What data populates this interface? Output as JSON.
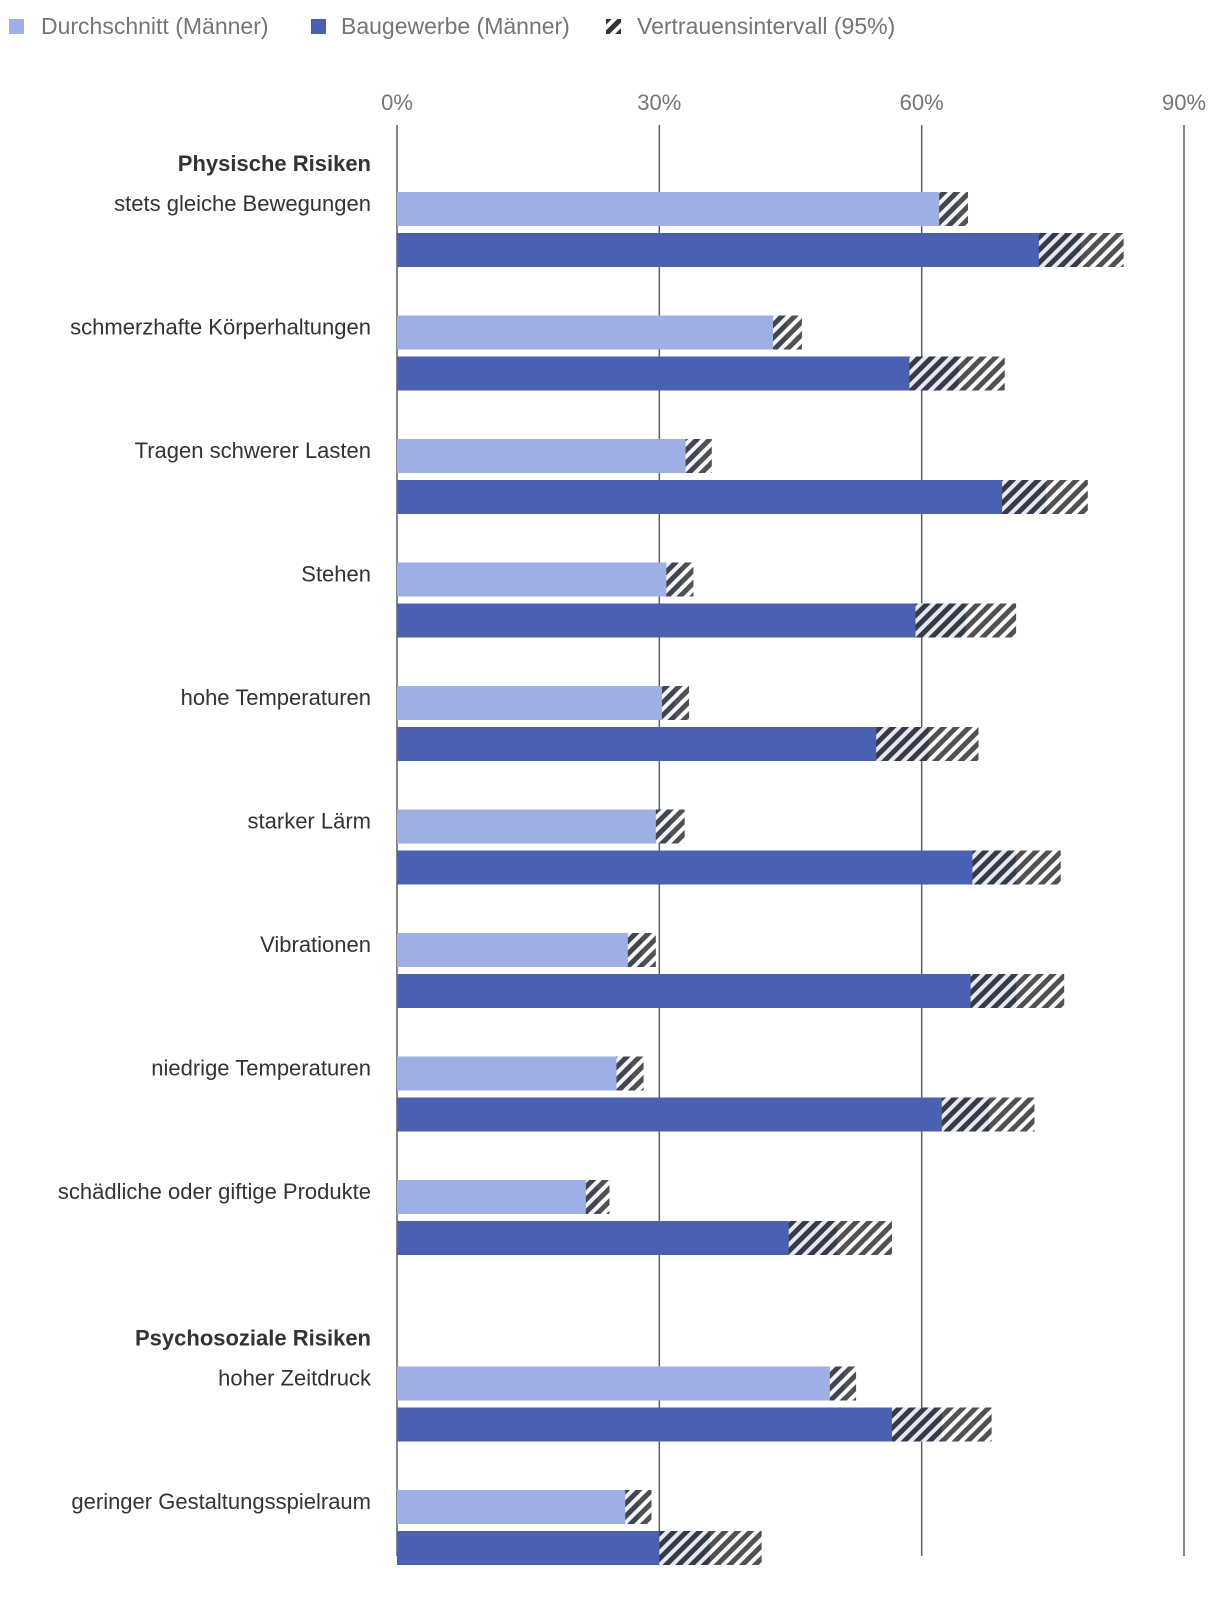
{
  "chart_data": {
    "type": "bar",
    "orientation": "horizontal",
    "xlim": [
      0,
      90
    ],
    "x_ticks": [
      {
        "value": 0,
        "label": "0%"
      },
      {
        "value": 30,
        "label": "30%"
      },
      {
        "value": 60,
        "label": "60%"
      },
      {
        "value": 90,
        "label": "90%"
      }
    ],
    "colors": {
      "durchschnitt": "#9dafe5",
      "baugewerbe": "#4a61b3",
      "ci": "#333333",
      "grid": "#5f5f5f"
    },
    "legend": [
      {
        "key": "durchschnitt",
        "label": "Durchschnitt (Männer)"
      },
      {
        "key": "baugewerbe",
        "label": "Baugewerbe (Männer)"
      },
      {
        "key": "ci",
        "label": "Vertrauensintervall (95%)"
      }
    ],
    "groups": [
      {
        "label": "Physische Risiken",
        "items": [
          {
            "label": "stets gleiche Bewegungen",
            "durchschnitt": {
              "value": 64,
              "ci": [
                62,
                65.3
              ]
            },
            "baugewerbe": {
              "value": 78.2,
              "ci": [
                73.4,
                83.1
              ]
            }
          },
          {
            "label": "schmerzhafte Körperhaltungen",
            "durchschnitt": {
              "value": 44.5,
              "ci": [
                43,
                46.3
              ]
            },
            "baugewerbe": {
              "value": 64.2,
              "ci": [
                58.6,
                69.5
              ]
            }
          },
          {
            "label": "Tragen schwerer Lasten",
            "durchschnitt": {
              "value": 34.5,
              "ci": [
                33,
                36
              ]
            },
            "baugewerbe": {
              "value": 74.2,
              "ci": [
                69.2,
                79
              ]
            }
          },
          {
            "label": "Stehen",
            "durchschnitt": {
              "value": 32.5,
              "ci": [
                30.8,
                33.9
              ]
            },
            "baugewerbe": {
              "value": 65,
              "ci": [
                59.3,
                70.8
              ]
            }
          },
          {
            "label": "hohe Temperaturen",
            "durchschnitt": {
              "value": 31.8,
              "ci": [
                30.3,
                33.4
              ]
            },
            "baugewerbe": {
              "value": 60.8,
              "ci": [
                54.8,
                66.5
              ]
            }
          },
          {
            "label": "starker Lärm",
            "durchschnitt": {
              "value": 31.3,
              "ci": [
                29.6,
                32.9
              ]
            },
            "baugewerbe": {
              "value": 70.8,
              "ci": [
                65.8,
                75.9
              ]
            }
          },
          {
            "label": "Vibrationen",
            "durchschnitt": {
              "value": 28,
              "ci": [
                26.4,
                29.6
              ]
            },
            "baugewerbe": {
              "value": 70.8,
              "ci": [
                65.6,
                76.3
              ]
            }
          },
          {
            "label": "niedrige Temperaturen",
            "durchschnitt": {
              "value": 26.8,
              "ci": [
                25.1,
                28.2
              ]
            },
            "baugewerbe": {
              "value": 67.7,
              "ci": [
                62.3,
                72.9
              ]
            }
          },
          {
            "label": "schädliche oder giftige Produkte",
            "durchschnitt": {
              "value": 22.9,
              "ci": [
                21.6,
                24.3
              ]
            },
            "baugewerbe": {
              "value": 50.3,
              "ci": [
                44.8,
                56.6
              ]
            }
          }
        ]
      },
      {
        "label": "Psychosoziale Risiken",
        "items": [
          {
            "label": "hoher Zeitdruck",
            "durchschnitt": {
              "value": 51.1,
              "ci": [
                49.5,
                52.5
              ]
            },
            "baugewerbe": {
              "value": 62.3,
              "ci": [
                56.6,
                68
              ]
            }
          },
          {
            "label": "geringer Gestaltungsspielraum",
            "durchschnitt": {
              "value": 27.6,
              "ci": [
                26.1,
                29.1
              ]
            },
            "baugewerbe": {
              "value": 35.8,
              "ci": [
                30,
                41.7
              ]
            }
          }
        ]
      }
    ]
  }
}
